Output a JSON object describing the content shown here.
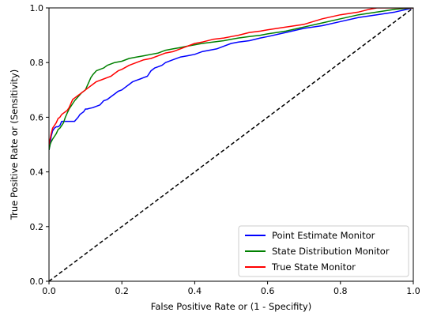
{
  "chart_data": {
    "type": "line",
    "title": "",
    "xlabel": "False Positive Rate or (1 - Specifity)",
    "ylabel": "True Positive Rate or (Sensitivity)",
    "xlim": [
      0.0,
      1.0
    ],
    "ylim": [
      0.0,
      1.0
    ],
    "x_ticks": [
      "0.0",
      "0.2",
      "0.4",
      "0.6",
      "0.8",
      "1.0"
    ],
    "y_ticks": [
      "0.0",
      "0.2",
      "0.4",
      "0.6",
      "0.8",
      "1.0"
    ],
    "grid": false,
    "legend_position": "lower-right",
    "series": [
      {
        "name": "Point Estimate Monitor",
        "color": "#0000ff",
        "x": [
          0.0,
          0.003,
          0.006,
          0.01,
          0.015,
          0.02,
          0.025,
          0.03,
          0.035,
          0.04,
          0.045,
          0.05,
          0.06,
          0.07,
          0.08,
          0.085,
          0.09,
          0.095,
          0.1,
          0.105,
          0.11,
          0.12,
          0.13,
          0.14,
          0.15,
          0.16,
          0.17,
          0.18,
          0.19,
          0.2,
          0.21,
          0.22,
          0.23,
          0.24,
          0.25,
          0.26,
          0.27,
          0.28,
          0.29,
          0.3,
          0.31,
          0.32,
          0.34,
          0.36,
          0.38,
          0.4,
          0.42,
          0.44,
          0.46,
          0.48,
          0.5,
          0.52,
          0.55,
          0.58,
          0.6,
          0.65,
          0.7,
          0.75,
          0.8,
          0.85,
          0.9,
          0.95,
          1.0
        ],
        "y": [
          0.48,
          0.5,
          0.53,
          0.55,
          0.56,
          0.565,
          0.565,
          0.57,
          0.585,
          0.585,
          0.585,
          0.585,
          0.585,
          0.585,
          0.6,
          0.61,
          0.615,
          0.62,
          0.63,
          0.63,
          0.632,
          0.635,
          0.64,
          0.645,
          0.66,
          0.665,
          0.675,
          0.685,
          0.695,
          0.7,
          0.71,
          0.72,
          0.73,
          0.735,
          0.74,
          0.745,
          0.75,
          0.77,
          0.78,
          0.785,
          0.79,
          0.8,
          0.81,
          0.82,
          0.825,
          0.83,
          0.84,
          0.845,
          0.85,
          0.86,
          0.87,
          0.875,
          0.88,
          0.89,
          0.895,
          0.91,
          0.925,
          0.935,
          0.95,
          0.965,
          0.975,
          0.985,
          1.0
        ]
      },
      {
        "name": "State Distribution Monitor",
        "color": "#008000",
        "x": [
          0.0,
          0.003,
          0.006,
          0.01,
          0.015,
          0.02,
          0.025,
          0.03,
          0.035,
          0.04,
          0.045,
          0.05,
          0.055,
          0.06,
          0.065,
          0.07,
          0.08,
          0.09,
          0.1,
          0.105,
          0.11,
          0.115,
          0.12,
          0.13,
          0.14,
          0.15,
          0.16,
          0.18,
          0.2,
          0.22,
          0.24,
          0.26,
          0.28,
          0.3,
          0.32,
          0.34,
          0.36,
          0.38,
          0.4,
          0.42,
          0.45,
          0.48,
          0.5,
          0.52,
          0.55,
          0.58,
          0.6,
          0.65,
          0.7,
          0.75,
          0.8,
          0.85,
          0.9,
          0.95,
          1.0
        ],
        "y": [
          0.48,
          0.5,
          0.51,
          0.52,
          0.53,
          0.54,
          0.555,
          0.56,
          0.57,
          0.58,
          0.6,
          0.615,
          0.63,
          0.64,
          0.65,
          0.66,
          0.675,
          0.69,
          0.7,
          0.715,
          0.73,
          0.745,
          0.755,
          0.77,
          0.775,
          0.78,
          0.79,
          0.8,
          0.805,
          0.815,
          0.82,
          0.825,
          0.83,
          0.835,
          0.845,
          0.85,
          0.855,
          0.86,
          0.865,
          0.87,
          0.875,
          0.88,
          0.885,
          0.89,
          0.895,
          0.9,
          0.905,
          0.915,
          0.93,
          0.945,
          0.96,
          0.975,
          0.985,
          0.995,
          1.0
        ]
      },
      {
        "name": "True State Monitor",
        "color": "#ff0000",
        "x": [
          0.0,
          0.003,
          0.006,
          0.01,
          0.015,
          0.02,
          0.025,
          0.03,
          0.035,
          0.04,
          0.045,
          0.05,
          0.055,
          0.06,
          0.065,
          0.07,
          0.08,
          0.09,
          0.1,
          0.11,
          0.12,
          0.13,
          0.14,
          0.15,
          0.16,
          0.17,
          0.18,
          0.19,
          0.2,
          0.22,
          0.24,
          0.26,
          0.28,
          0.3,
          0.32,
          0.34,
          0.36,
          0.38,
          0.4,
          0.42,
          0.45,
          0.48,
          0.5,
          0.52,
          0.55,
          0.58,
          0.6,
          0.65,
          0.7,
          0.75,
          0.8,
          0.85,
          0.88,
          0.9,
          0.95,
          1.0
        ],
        "y": [
          0.5,
          0.52,
          0.54,
          0.56,
          0.57,
          0.58,
          0.595,
          0.6,
          0.61,
          0.615,
          0.62,
          0.625,
          0.635,
          0.65,
          0.665,
          0.67,
          0.68,
          0.69,
          0.7,
          0.71,
          0.72,
          0.73,
          0.735,
          0.74,
          0.745,
          0.75,
          0.76,
          0.77,
          0.775,
          0.79,
          0.8,
          0.81,
          0.815,
          0.825,
          0.835,
          0.84,
          0.85,
          0.86,
          0.87,
          0.875,
          0.885,
          0.89,
          0.895,
          0.9,
          0.91,
          0.915,
          0.92,
          0.93,
          0.94,
          0.96,
          0.975,
          0.985,
          0.995,
          1.0,
          1.0,
          1.0
        ]
      }
    ],
    "reference_line": {
      "x": [
        0.0,
        1.0
      ],
      "y": [
        0.0,
        1.0
      ],
      "color": "#000000",
      "style": "dashed"
    }
  }
}
